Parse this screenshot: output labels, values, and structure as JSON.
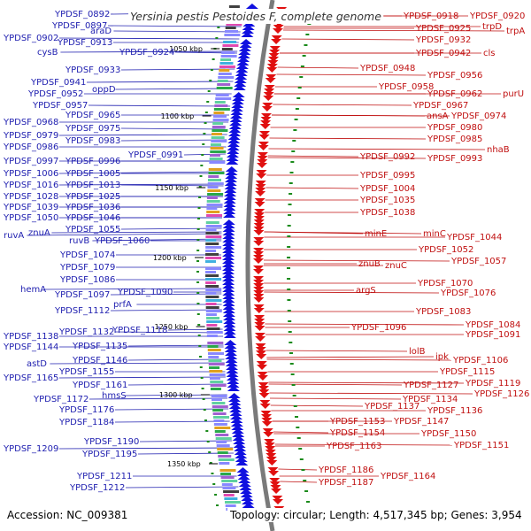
{
  "title": "Yersinia pestis Pestoides F, complete genome",
  "footer": {
    "accession": "Accession: NC_009381",
    "stats": "Topology: circular; Length: 4,517,345 bp; Genes: 3,954"
  },
  "scale_labels": [
    "1050 kbp",
    "1100 kbp",
    "1150 kbp",
    "1200 kbp",
    "1250 kbp",
    "1300 kbp",
    "1350 kbp"
  ],
  "colors": {
    "forward_strand": "#1010e0",
    "reverse_strand": "#e01010",
    "backbone": "#7a7a7a",
    "left_label": "#2020b0",
    "right_label": "#c01010"
  },
  "left_labels": [
    "YPDSF_0892",
    "YPDSF_0897",
    "araD",
    "YPDSF_0902",
    "YPDSF_0913",
    "cysB",
    "YPDSF_0924",
    "YPDSF_0933",
    "YPDSF_0941",
    "oppD",
    "YPDSF_0952",
    "YPDSF_0957",
    "YPDSF_0965",
    "YPDSF_0968",
    "YPDSF_0975",
    "YPDSF_0979",
    "YPDSF_0983",
    "YPDSF_0986",
    "YPDSF_0991",
    "YPDSF_0997",
    "YPDSF_0996",
    "YPDSF_1006",
    "YPDSF_1005",
    "YPDSF_1016",
    "YPDSF_1013",
    "YPDSF_1028",
    "YPDSF_1025",
    "YPDSF_1039",
    "YPDSF_1036",
    "YPDSF_1050",
    "YPDSF_1046",
    "YPDSF_1055",
    "ruvA",
    "znuA",
    "ruvB",
    "YPDSF_1060",
    "YPDSF_1074",
    "YPDSF_1079",
    "YPDSF_1086",
    "hemA",
    "YPDSF_1097",
    "YPDSF_1090",
    "prfA",
    "YPDSF_1112",
    "YPDSF_1118",
    "YPDSF_1138",
    "YPDSF_1132",
    "YPDSF_1144",
    "YPDSF_1135",
    "YPDSF_1146",
    "astD",
    "YPDSF_1155",
    "YPDSF_1165",
    "YPDSF_1161",
    "hmsS",
    "YPDSF_1172",
    "YPDSF_1176",
    "YPDSF_1184",
    "YPDSF_1190",
    "YPDSF_1209",
    "YPDSF_1195",
    "YPDSF_1211",
    "YPDSF_1212"
  ],
  "right_labels": [
    "YPDSF_0918",
    "YPDSF_0920",
    "trpD",
    "YPDSF_0925",
    "trpA",
    "YPDSF_0932",
    "YPDSF_0942",
    "cls",
    "YPDSF_0948",
    "YPDSF_0956",
    "YPDSF_0958",
    "YPDSF_0962",
    "purU",
    "YPDSF_0967",
    "ansA",
    "YPDSF_0974",
    "YPDSF_0980",
    "YPDSF_0985",
    "nhaB",
    "YPDSF_0992",
    "YPDSF_0993",
    "YPDSF_0995",
    "YPDSF_1004",
    "YPDSF_1035",
    "YPDSF_1038",
    "minE",
    "minC",
    "YPDSF_1044",
    "YPDSF_1052",
    "znuB",
    "znuC",
    "YPDSF_1057",
    "YPDSF_1070",
    "argS",
    "YPDSF_1076",
    "YPDSF_1083",
    "YPDSF_1084",
    "YPDSF_1096",
    "YPDSF_1091",
    "lolB",
    "ipk",
    "YPDSF_1106",
    "YPDSF_1115",
    "YPDSF_1119",
    "YPDSF_1127",
    "YPDSF_1126",
    "YPDSF_1134",
    "YPDSF_1137",
    "YPDSF_1136",
    "YPDSF_1147",
    "YPDSF_1153",
    "YPDSF_1150",
    "YPDSF_1154",
    "YPDSF_1151",
    "YPDSF_1163",
    "YPDSF_1186",
    "YPDSF_1164",
    "YPDSF_1187"
  ]
}
